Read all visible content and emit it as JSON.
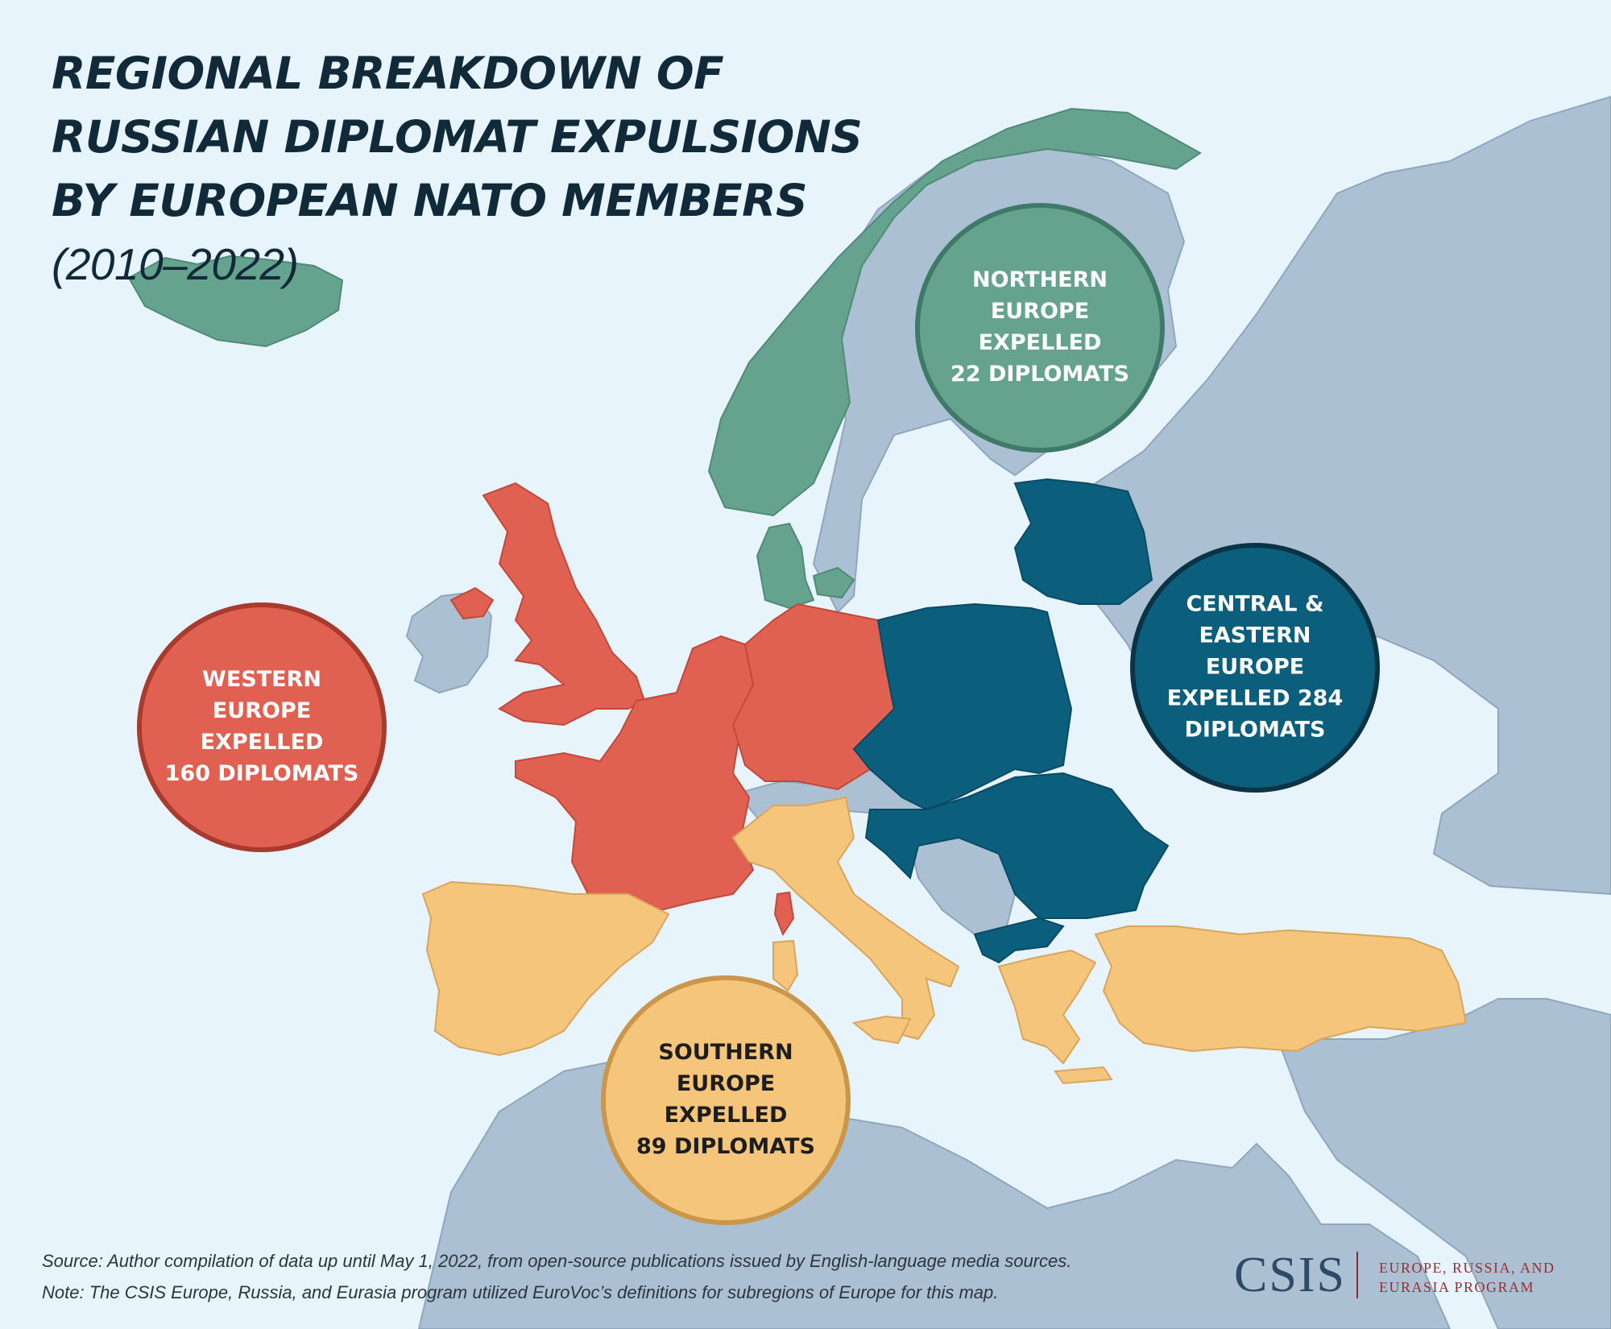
{
  "title": {
    "main": "REGIONAL BREAKDOWN OF RUSSIAN DIPLOMAT EXPULSIONS BY EUROPEAN NATO MEMBERS",
    "years": "(2010–2022)"
  },
  "colors": {
    "sea": "#e8f4fc",
    "land_other": "#abc0d3",
    "border": "#8ea7bd",
    "northern": "#65a38f",
    "western": "#e06152",
    "central_eastern": "#0b5e7c",
    "southern": "#f5c57b"
  },
  "regions": [
    {
      "id": "northern",
      "lines": [
        "NORTHERN",
        "EUROPE",
        "EXPELLED",
        "22 DIPLOMATS"
      ],
      "expelled": 22,
      "fill": "#65a38f",
      "stroke": "#3f7a68",
      "text_color": "#ffffff"
    },
    {
      "id": "western",
      "lines": [
        "WESTERN",
        "EUROPE",
        "EXPELLED",
        "160 DIPLOMATS"
      ],
      "expelled": 160,
      "fill": "#e06152",
      "stroke": "#a93a2e",
      "text_color": "#ffffff"
    },
    {
      "id": "central_eastern",
      "lines": [
        "CENTRAL &",
        "EASTERN",
        "EUROPE",
        "EXPELLED 284",
        "DIPLOMATS"
      ],
      "expelled": 284,
      "fill": "#0b5e7c",
      "stroke": "#0b3346",
      "text_color": "#ffffff"
    },
    {
      "id": "southern",
      "lines": [
        "SOUTHERN",
        "EUROPE",
        "EXPELLED",
        "89 DIPLOMATS"
      ],
      "expelled": 89,
      "fill": "#f5c57b",
      "stroke": "#c9964a",
      "text_color": "#1d1d1d"
    }
  ],
  "footer": {
    "source": "Source: Author compilation of data up until May 1, 2022, from open-source publications issued by English-language media sources.",
    "note": "Note: The CSIS Europe, Russia, and Eurasia program utilized EuroVoc’s definitions for subregions of Europe for this map."
  },
  "logo": {
    "org": "CSIS",
    "program_line1": "EUROPE, RUSSIA, AND",
    "program_line2": "EURASIA PROGRAM"
  }
}
